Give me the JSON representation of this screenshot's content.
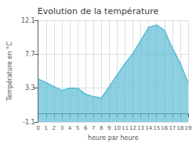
{
  "chart_data": {
    "type": "area",
    "title": "Evolution de la température",
    "xlabel": "heure par heure",
    "ylabel": "Température en °C",
    "x": [
      0,
      1,
      2,
      3,
      4,
      5,
      6,
      7,
      8,
      9,
      10,
      11,
      12,
      13,
      14,
      15,
      16,
      17,
      18,
      19
    ],
    "values": [
      4.5,
      4.0,
      3.5,
      3.0,
      3.3,
      3.3,
      2.5,
      2.2,
      2.0,
      3.5,
      5.0,
      6.5,
      7.8,
      9.5,
      11.2,
      11.5,
      10.8,
      8.5,
      6.5,
      4.0
    ],
    "color": "#5bbcd6",
    "xlim": [
      0,
      19
    ],
    "xticks": [
      0,
      1,
      2,
      3,
      4,
      5,
      6,
      7,
      8,
      9,
      10,
      11,
      12,
      13,
      14,
      15,
      16,
      17,
      18,
      19
    ],
    "ylim": [
      -1.1,
      12.1
    ],
    "yticks": [
      -1.1,
      3.3,
      7.7,
      12.1
    ],
    "grid": true
  }
}
